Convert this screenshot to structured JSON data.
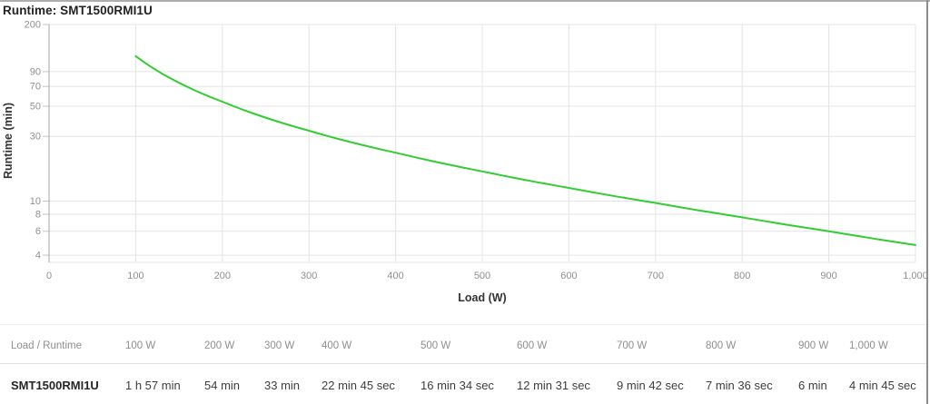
{
  "page": {
    "title": "Runtime: SMT1500RMI1U"
  },
  "chart_data": {
    "type": "line",
    "title": "Runtime: SMT1500RMI1U",
    "xlabel": "Load (W)",
    "ylabel": "Runtime (min)",
    "y_scale": "log",
    "grid": true,
    "legend": "none",
    "xlim": [
      0,
      1000
    ],
    "ylim": [
      3.54,
      200
    ],
    "x_ticks": [
      0,
      100,
      200,
      300,
      400,
      500,
      600,
      700,
      800,
      900,
      1000
    ],
    "x_tick_labels": [
      "0",
      "100",
      "200",
      "300",
      "400",
      "500",
      "600",
      "700",
      "800",
      "900",
      "1,000"
    ],
    "y_ticks": [
      200,
      90,
      70,
      50,
      30,
      10,
      8,
      6,
      4
    ],
    "series": [
      {
        "name": "SMT1500RMI1U",
        "color": "#32cd32",
        "x": [
          100,
          200,
          300,
          400,
          500,
          600,
          700,
          800,
          900,
          1000
        ],
        "y_minutes": [
          117,
          54,
          33,
          22.75,
          16.5667,
          12.5167,
          9.7,
          7.6,
          6,
          4.75
        ],
        "y_labels": [
          "1 h 57 min",
          "54 min",
          "33 min",
          "22 min 45 sec",
          "16 min 34 sec",
          "12 min 31 sec",
          "9 min 42 sec",
          "7 min 36 sec",
          "6 min",
          "4 min 45 sec"
        ]
      }
    ]
  },
  "table": {
    "corner_label": "Load / Runtime",
    "columns": [
      "100 W",
      "200 W",
      "300 W",
      "400 W",
      "500 W",
      "600 W",
      "700 W",
      "800 W",
      "900 W",
      "1,000 W"
    ],
    "rows": [
      {
        "model": "SMT1500RMI1U",
        "values": [
          "1 h 57 min",
          "54 min",
          "33 min",
          "22 min 45 sec",
          "16 min 34 sec",
          "12 min 31 sec",
          "9 min 42 sec",
          "7 min 36 sec",
          "6 min",
          "4 min 45 sec"
        ]
      }
    ]
  },
  "colors": {
    "line": "#32cd32",
    "grid": "#e4e4e4",
    "axis": "#a6a6a6",
    "tick": "#c4c4c4",
    "tick_label": "#909090",
    "axis_title": "#333333",
    "page_title": "#222222",
    "table_header": "#8e8e8e",
    "table_value": "#3d3d3d",
    "divider": "#e0e0e0"
  }
}
